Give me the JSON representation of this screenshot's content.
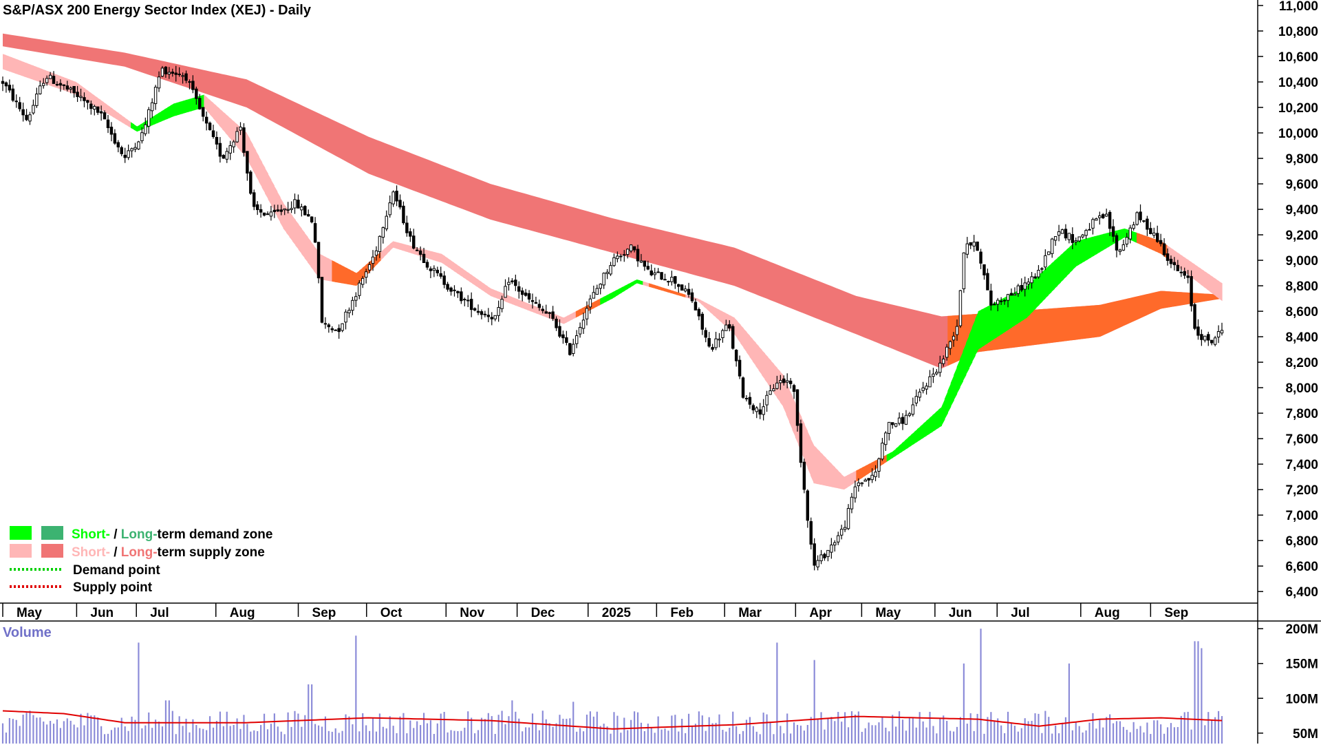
{
  "chart_data": [
    {
      "type": "candlestick",
      "title": "S&P/ASX 200 Energy Sector Index (XEJ) - Daily",
      "y_ticks": [
        6400,
        6600,
        6800,
        7000,
        7200,
        7400,
        7600,
        7800,
        8000,
        8200,
        8400,
        8600,
        8800,
        9000,
        9200,
        9400,
        9600,
        9800,
        10000,
        10200,
        10400,
        10600,
        10800,
        11000
      ],
      "y_tick_labels": [
        "6,400",
        "6,600",
        "6,800",
        "7,000",
        "7,200",
        "7,400",
        "7,600",
        "7,800",
        "8,000",
        "8,200",
        "8,400",
        "8,600",
        "8,800",
        "9,000",
        "9,200",
        "9,400",
        "9,600",
        "9,800",
        "10,000",
        "10,200",
        "10,400",
        "10,600",
        "10,800",
        "11,000"
      ],
      "ylim": [
        6320,
        11000
      ],
      "x_ticks": [
        "May",
        "Jun",
        "Jul",
        "Aug",
        "Sep",
        "Oct",
        "Nov",
        "Dec",
        "2025",
        "Feb",
        "Mar",
        "Apr",
        "May",
        "Jun",
        "Jul",
        "Aug",
        "Sep"
      ],
      "x_tick_positions": [
        0.0,
        0.0606,
        0.1096,
        0.1748,
        0.2424,
        0.2984,
        0.3636,
        0.4219,
        0.4801,
        0.5363,
        0.5921,
        0.6503,
        0.7045,
        0.7646,
        0.8156,
        0.8842,
        0.9415
      ],
      "price_series": [
        {
          "t": 0.0,
          "v": 10400
        },
        {
          "t": 0.02,
          "v": 10100
        },
        {
          "t": 0.035,
          "v": 10450
        },
        {
          "t": 0.06,
          "v": 10300
        },
        {
          "t": 0.08,
          "v": 10150
        },
        {
          "t": 0.1,
          "v": 9800
        },
        {
          "t": 0.115,
          "v": 10000
        },
        {
          "t": 0.13,
          "v": 10500
        },
        {
          "t": 0.15,
          "v": 10450
        },
        {
          "t": 0.165,
          "v": 10100
        },
        {
          "t": 0.18,
          "v": 9800
        },
        {
          "t": 0.195,
          "v": 10050
        },
        {
          "t": 0.205,
          "v": 9400
        },
        {
          "t": 0.22,
          "v": 9350
        },
        {
          "t": 0.24,
          "v": 9450
        },
        {
          "t": 0.255,
          "v": 9300
        },
        {
          "t": 0.262,
          "v": 8500
        },
        {
          "t": 0.275,
          "v": 8450
        },
        {
          "t": 0.29,
          "v": 8750
        },
        {
          "t": 0.305,
          "v": 9050
        },
        {
          "t": 0.32,
          "v": 9550
        },
        {
          "t": 0.335,
          "v": 9150
        },
        {
          "t": 0.35,
          "v": 8950
        },
        {
          "t": 0.37,
          "v": 8750
        },
        {
          "t": 0.39,
          "v": 8600
        },
        {
          "t": 0.405,
          "v": 8550
        },
        {
          "t": 0.415,
          "v": 8850
        },
        {
          "t": 0.43,
          "v": 8700
        },
        {
          "t": 0.45,
          "v": 8550
        },
        {
          "t": 0.465,
          "v": 8280
        },
        {
          "t": 0.48,
          "v": 8650
        },
        {
          "t": 0.5,
          "v": 9000
        },
        {
          "t": 0.515,
          "v": 9100
        },
        {
          "t": 0.53,
          "v": 8900
        },
        {
          "t": 0.55,
          "v": 8850
        },
        {
          "t": 0.565,
          "v": 8700
        },
        {
          "t": 0.58,
          "v": 8300
        },
        {
          "t": 0.595,
          "v": 8500
        },
        {
          "t": 0.607,
          "v": 7950
        },
        {
          "t": 0.62,
          "v": 7800
        },
        {
          "t": 0.635,
          "v": 8050
        },
        {
          "t": 0.648,
          "v": 8050
        },
        {
          "t": 0.655,
          "v": 7400
        },
        {
          "t": 0.665,
          "v": 6600
        },
        {
          "t": 0.675,
          "v": 6700
        },
        {
          "t": 0.69,
          "v": 6900
        },
        {
          "t": 0.7,
          "v": 7250
        },
        {
          "t": 0.715,
          "v": 7300
        },
        {
          "t": 0.725,
          "v": 7700
        },
        {
          "t": 0.74,
          "v": 7750
        },
        {
          "t": 0.755,
          "v": 8000
        },
        {
          "t": 0.77,
          "v": 8200
        },
        {
          "t": 0.783,
          "v": 8500
        },
        {
          "t": 0.789,
          "v": 9150
        },
        {
          "t": 0.8,
          "v": 9100
        },
        {
          "t": 0.81,
          "v": 8650
        },
        {
          "t": 0.83,
          "v": 8750
        },
        {
          "t": 0.85,
          "v": 8900
        },
        {
          "t": 0.865,
          "v": 9250
        },
        {
          "t": 0.88,
          "v": 9150
        },
        {
          "t": 0.895,
          "v": 9300
        },
        {
          "t": 0.905,
          "v": 9350
        },
        {
          "t": 0.915,
          "v": 9050
        },
        {
          "t": 0.93,
          "v": 9350
        },
        {
          "t": 0.945,
          "v": 9200
        },
        {
          "t": 0.96,
          "v": 8950
        },
        {
          "t": 0.972,
          "v": 8850
        },
        {
          "t": 0.978,
          "v": 8450
        },
        {
          "t": 0.99,
          "v": 8350
        },
        {
          "t": 1.0,
          "v": 8450
        }
      ],
      "long_term_zone": [
        {
          "t": 0.0,
          "upper": 10780,
          "lower": 10680
        },
        {
          "t": 0.1,
          "upper": 10630,
          "lower": 10520
        },
        {
          "t": 0.2,
          "upper": 10420,
          "lower": 10200
        },
        {
          "t": 0.3,
          "upper": 9970,
          "lower": 9680
        },
        {
          "t": 0.4,
          "upper": 9600,
          "lower": 9320
        },
        {
          "t": 0.5,
          "upper": 9330,
          "lower": 9060
        },
        {
          "t": 0.6,
          "upper": 9100,
          "lower": 8800
        },
        {
          "t": 0.7,
          "upper": 8720,
          "lower": 8420
        },
        {
          "t": 0.77,
          "upper": 8560,
          "lower": 8150
        },
        {
          "t": 0.8,
          "upper": 8580,
          "lower": 8280
        },
        {
          "t": 0.9,
          "upper": 8650,
          "lower": 8400
        },
        {
          "t": 0.95,
          "upper": 8760,
          "lower": 8620
        },
        {
          "t": 1.0,
          "upper": 8730,
          "lower": 8700
        }
      ],
      "short_term_zone": [
        {
          "t": 0.0,
          "upper": 10620,
          "lower": 10500
        },
        {
          "t": 0.06,
          "upper": 10400,
          "lower": 10300
        },
        {
          "t": 0.11,
          "upper": 10050,
          "lower": 10010
        },
        {
          "t": 0.14,
          "upper": 10230,
          "lower": 10130
        },
        {
          "t": 0.165,
          "upper": 10300,
          "lower": 10200
        },
        {
          "t": 0.2,
          "upper": 10000,
          "lower": 9800
        },
        {
          "t": 0.23,
          "upper": 9450,
          "lower": 9250
        },
        {
          "t": 0.26,
          "upper": 9050,
          "lower": 8850
        },
        {
          "t": 0.29,
          "upper": 8900,
          "lower": 8800
        },
        {
          "t": 0.32,
          "upper": 9150,
          "lower": 9100
        },
        {
          "t": 0.36,
          "upper": 9050,
          "lower": 8980
        },
        {
          "t": 0.4,
          "upper": 8780,
          "lower": 8720
        },
        {
          "t": 0.46,
          "upper": 8550,
          "lower": 8500
        },
        {
          "t": 0.5,
          "upper": 8750,
          "lower": 8700
        },
        {
          "t": 0.52,
          "upper": 8850,
          "lower": 8820
        },
        {
          "t": 0.57,
          "upper": 8700,
          "lower": 8680
        },
        {
          "t": 0.6,
          "upper": 8550,
          "lower": 8420
        },
        {
          "t": 0.64,
          "upper": 8100,
          "lower": 7850
        },
        {
          "t": 0.665,
          "upper": 7550,
          "lower": 7250
        },
        {
          "t": 0.69,
          "upper": 7300,
          "lower": 7200
        },
        {
          "t": 0.73,
          "upper": 7500,
          "lower": 7450
        },
        {
          "t": 0.77,
          "upper": 7850,
          "lower": 7700
        },
        {
          "t": 0.8,
          "upper": 8600,
          "lower": 8300
        },
        {
          "t": 0.84,
          "upper": 8800,
          "lower": 8550
        },
        {
          "t": 0.88,
          "upper": 9150,
          "lower": 8950
        },
        {
          "t": 0.92,
          "upper": 9250,
          "lower": 9180
        },
        {
          "t": 0.95,
          "upper": 9150,
          "lower": 9050
        },
        {
          "t": 1.0,
          "upper": 8820,
          "lower": 8680
        }
      ],
      "volume": {
        "label": "Volume",
        "y_ticks": [
          50,
          100,
          150,
          200
        ],
        "y_tick_labels": [
          "50M",
          "100M",
          "150M",
          "200M"
        ],
        "ylim": [
          35,
          213
        ],
        "base": 62,
        "spikes": [
          {
            "t": 0.111,
            "v": 180
          },
          {
            "t": 0.135,
            "v": 97
          },
          {
            "t": 0.252,
            "v": 120
          },
          {
            "t": 0.289,
            "v": 190
          },
          {
            "t": 0.417,
            "v": 97
          },
          {
            "t": 0.468,
            "v": 95
          },
          {
            "t": 0.636,
            "v": 180
          },
          {
            "t": 0.666,
            "v": 155
          },
          {
            "t": 0.789,
            "v": 150
          },
          {
            "t": 0.802,
            "v": 200
          },
          {
            "t": 0.875,
            "v": 150
          },
          {
            "t": 0.979,
            "v": 182
          },
          {
            "t": 0.983,
            "v": 172
          }
        ],
        "avg_line": [
          {
            "t": 0.0,
            "v": 82
          },
          {
            "t": 0.05,
            "v": 78
          },
          {
            "t": 0.1,
            "v": 65
          },
          {
            "t": 0.2,
            "v": 65
          },
          {
            "t": 0.3,
            "v": 72
          },
          {
            "t": 0.4,
            "v": 68
          },
          {
            "t": 0.5,
            "v": 56
          },
          {
            "t": 0.6,
            "v": 62
          },
          {
            "t": 0.7,
            "v": 74
          },
          {
            "t": 0.8,
            "v": 70
          },
          {
            "t": 0.85,
            "v": 60
          },
          {
            "t": 0.9,
            "v": 70
          },
          {
            "t": 0.95,
            "v": 72
          },
          {
            "t": 1.0,
            "v": 68
          }
        ]
      },
      "legend": {
        "position": "bottom-left",
        "items": [
          {
            "short_label": "Short-",
            "sep": " / ",
            "long_label": "Long-",
            "rest": "term demand zone",
            "short_color": "#00ff00",
            "long_color": "#3cb371"
          },
          {
            "short_label": "Short-",
            "sep": " / ",
            "long_label": "Long-",
            "rest": "term supply zone",
            "short_color": "#ffb6b6",
            "long_color": "#f07575"
          },
          {
            "label": "Demand point",
            "color": "#00d000"
          },
          {
            "label": "Supply point",
            "color": "#e00000"
          }
        ]
      },
      "colors": {
        "candle": "#000000",
        "short_demand": "#00ff00",
        "long_demand": "#3cb371",
        "short_supply": "#ffb6b6",
        "long_supply": "#f07575",
        "transition": "#ff6a2a",
        "volume_bar": "#8a8ad8",
        "volume_avg": "#e00000",
        "volume_label": "#7070c8"
      }
    }
  ]
}
